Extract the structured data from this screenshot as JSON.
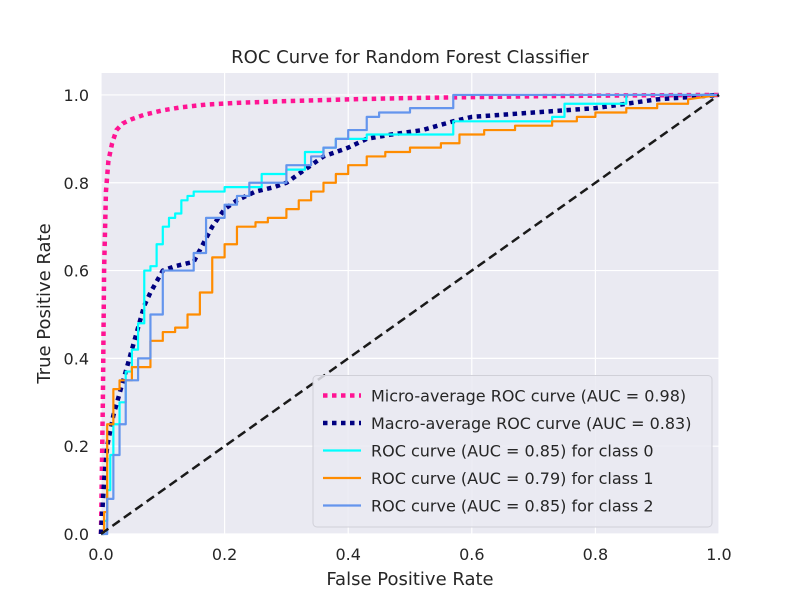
{
  "chart_data": {
    "type": "line",
    "title": "ROC Curve for Random Forest Classifier",
    "xlabel": "False Positive Rate",
    "ylabel": "True Positive Rate",
    "xlim": [
      0.0,
      1.0
    ],
    "ylim": [
      0.0,
      1.05
    ],
    "xticks": [
      0.0,
      0.2,
      0.4,
      0.6,
      0.8,
      1.0
    ],
    "yticks": [
      0.0,
      0.2,
      0.4,
      0.6,
      0.8,
      1.0
    ],
    "xtick_labels": [
      "0.0",
      "0.2",
      "0.4",
      "0.6",
      "0.8",
      "1.0"
    ],
    "ytick_labels": [
      "0.0",
      "0.2",
      "0.4",
      "0.6",
      "0.8",
      "1.0"
    ],
    "grid": true,
    "legend_position": "lower-right",
    "plot_background": "#eaeaf2",
    "series": [
      {
        "name": "Micro-average ROC curve (AUC = 0.98)",
        "color": "#ff1493",
        "line_style": "dotted",
        "x": [
          0.0,
          0.003,
          0.005,
          0.008,
          0.012,
          0.018,
          0.025,
          0.035,
          0.05,
          0.07,
          0.1,
          0.13,
          0.17,
          0.22,
          0.3,
          0.4,
          0.5,
          0.6,
          0.7,
          0.85,
          1.0
        ],
        "y": [
          0.0,
          0.3,
          0.6,
          0.78,
          0.85,
          0.89,
          0.92,
          0.935,
          0.945,
          0.955,
          0.965,
          0.972,
          0.978,
          0.982,
          0.986,
          0.99,
          0.993,
          0.995,
          0.997,
          0.999,
          1.0
        ]
      },
      {
        "name": "Macro-average ROC curve (AUC = 0.83)",
        "color": "#000080",
        "line_style": "dotted",
        "x": [
          0.0,
          0.005,
          0.01,
          0.02,
          0.03,
          0.04,
          0.05,
          0.06,
          0.07,
          0.08,
          0.1,
          0.12,
          0.15,
          0.18,
          0.2,
          0.22,
          0.25,
          0.28,
          0.3,
          0.33,
          0.36,
          0.4,
          0.43,
          0.47,
          0.52,
          0.57,
          0.6,
          0.65,
          0.7,
          0.75,
          0.8,
          0.85,
          0.9,
          1.0
        ],
        "y": [
          0.0,
          0.12,
          0.2,
          0.27,
          0.32,
          0.37,
          0.42,
          0.47,
          0.52,
          0.55,
          0.6,
          0.61,
          0.62,
          0.7,
          0.74,
          0.76,
          0.78,
          0.79,
          0.8,
          0.83,
          0.86,
          0.88,
          0.9,
          0.91,
          0.92,
          0.94,
          0.95,
          0.955,
          0.96,
          0.965,
          0.97,
          0.98,
          0.99,
          1.0
        ]
      },
      {
        "name": "ROC curve (AUC = 0.85) for class 0",
        "color": "#00ffff",
        "line_style": "solid",
        "x": [
          0.0,
          0.005,
          0.005,
          0.01,
          0.01,
          0.015,
          0.015,
          0.02,
          0.02,
          0.03,
          0.03,
          0.04,
          0.04,
          0.05,
          0.05,
          0.06,
          0.06,
          0.07,
          0.07,
          0.08,
          0.08,
          0.09,
          0.09,
          0.1,
          0.1,
          0.11,
          0.11,
          0.12,
          0.12,
          0.13,
          0.13,
          0.14,
          0.14,
          0.15,
          0.15,
          0.2,
          0.2,
          0.26,
          0.26,
          0.3,
          0.3,
          0.33,
          0.33,
          0.36,
          0.36,
          0.38,
          0.38,
          0.43,
          0.43,
          0.57,
          0.57,
          0.73,
          0.73,
          0.75,
          0.75,
          0.85,
          0.85,
          1.0
        ],
        "y": [
          0.0,
          0.0,
          0.03,
          0.03,
          0.1,
          0.1,
          0.18,
          0.18,
          0.25,
          0.25,
          0.3,
          0.3,
          0.37,
          0.37,
          0.42,
          0.42,
          0.48,
          0.48,
          0.6,
          0.6,
          0.61,
          0.61,
          0.66,
          0.66,
          0.7,
          0.7,
          0.72,
          0.72,
          0.73,
          0.73,
          0.76,
          0.76,
          0.77,
          0.77,
          0.78,
          0.78,
          0.79,
          0.79,
          0.82,
          0.82,
          0.83,
          0.83,
          0.87,
          0.87,
          0.88,
          0.88,
          0.9,
          0.9,
          0.91,
          0.91,
          0.94,
          0.94,
          0.95,
          0.95,
          0.98,
          0.98,
          1.0,
          1.0
        ]
      },
      {
        "name": "ROC curve (AUC = 0.79) for class 1",
        "color": "#ff8c00",
        "line_style": "solid",
        "x": [
          0.0,
          0.005,
          0.005,
          0.01,
          0.01,
          0.02,
          0.02,
          0.03,
          0.03,
          0.05,
          0.05,
          0.08,
          0.08,
          0.1,
          0.1,
          0.12,
          0.12,
          0.14,
          0.14,
          0.16,
          0.16,
          0.18,
          0.18,
          0.2,
          0.2,
          0.22,
          0.22,
          0.25,
          0.25,
          0.27,
          0.27,
          0.3,
          0.3,
          0.32,
          0.32,
          0.34,
          0.34,
          0.36,
          0.36,
          0.38,
          0.38,
          0.4,
          0.4,
          0.43,
          0.43,
          0.46,
          0.46,
          0.5,
          0.5,
          0.55,
          0.55,
          0.58,
          0.58,
          0.62,
          0.62,
          0.67,
          0.67,
          0.73,
          0.73,
          0.77,
          0.77,
          0.8,
          0.8,
          0.85,
          0.85,
          0.9,
          0.9,
          0.95,
          0.95,
          1.0
        ],
        "y": [
          0.0,
          0.0,
          0.05,
          0.05,
          0.25,
          0.25,
          0.33,
          0.33,
          0.35,
          0.35,
          0.38,
          0.38,
          0.44,
          0.44,
          0.46,
          0.46,
          0.47,
          0.47,
          0.5,
          0.5,
          0.55,
          0.55,
          0.63,
          0.63,
          0.66,
          0.66,
          0.7,
          0.7,
          0.71,
          0.71,
          0.72,
          0.72,
          0.74,
          0.74,
          0.76,
          0.76,
          0.78,
          0.78,
          0.8,
          0.8,
          0.82,
          0.82,
          0.84,
          0.84,
          0.86,
          0.86,
          0.87,
          0.87,
          0.88,
          0.88,
          0.89,
          0.89,
          0.91,
          0.91,
          0.92,
          0.92,
          0.93,
          0.93,
          0.94,
          0.94,
          0.95,
          0.95,
          0.96,
          0.96,
          0.97,
          0.97,
          0.98,
          0.98,
          0.99,
          1.0
        ]
      },
      {
        "name": "ROC curve (AUC = 0.85) for class 2",
        "color": "#6495ed",
        "line_style": "solid",
        "x": [
          0.0,
          0.01,
          0.01,
          0.02,
          0.02,
          0.03,
          0.03,
          0.04,
          0.04,
          0.06,
          0.06,
          0.08,
          0.08,
          0.1,
          0.1,
          0.15,
          0.15,
          0.17,
          0.17,
          0.2,
          0.2,
          0.22,
          0.22,
          0.24,
          0.24,
          0.3,
          0.3,
          0.34,
          0.34,
          0.36,
          0.36,
          0.38,
          0.38,
          0.4,
          0.4,
          0.43,
          0.43,
          0.45,
          0.45,
          0.5,
          0.5,
          0.57,
          0.57,
          0.7,
          0.7,
          0.85,
          0.85,
          1.0
        ],
        "y": [
          0.0,
          0.0,
          0.08,
          0.08,
          0.18,
          0.18,
          0.25,
          0.25,
          0.35,
          0.35,
          0.4,
          0.4,
          0.5,
          0.5,
          0.6,
          0.6,
          0.64,
          0.64,
          0.72,
          0.72,
          0.75,
          0.75,
          0.77,
          0.77,
          0.8,
          0.8,
          0.84,
          0.84,
          0.86,
          0.86,
          0.88,
          0.88,
          0.9,
          0.9,
          0.92,
          0.92,
          0.95,
          0.95,
          0.96,
          0.96,
          0.97,
          0.97,
          1.0,
          1.0,
          1.0,
          1.0,
          1.0,
          1.0
        ]
      },
      {
        "name": "",
        "color": "#1a1a1a",
        "line_style": "dashed",
        "x": [
          0.0,
          1.0
        ],
        "y": [
          0.0,
          1.0
        ],
        "in_legend": false
      }
    ]
  }
}
